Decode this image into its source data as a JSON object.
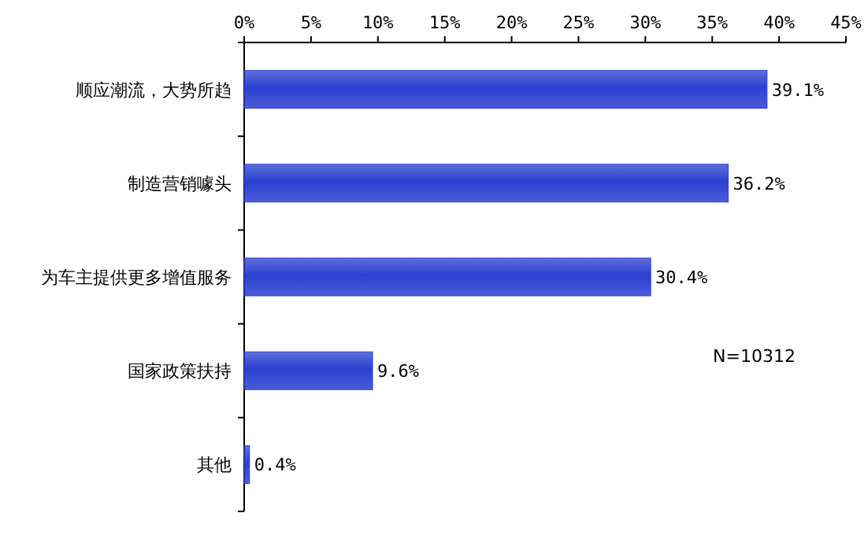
{
  "chart_data": {
    "type": "bar",
    "orientation": "horizontal",
    "categories": [
      "顺应潮流，大势所趋",
      "制造营销噱头",
      "为车主提供更多增值服务",
      "国家政策扶持",
      "其他"
    ],
    "values": [
      39.1,
      36.2,
      30.4,
      9.6,
      0.4
    ],
    "value_labels": [
      "39.1%",
      "36.2%",
      "30.4%",
      "9.6%",
      "0.4%"
    ],
    "color": "#2b3fd0",
    "xlim": [
      0,
      45
    ],
    "xticks": [
      {
        "value": 0,
        "label": "0%"
      },
      {
        "value": 5,
        "label": "5%"
      },
      {
        "value": 10,
        "label": "10%"
      },
      {
        "value": 15,
        "label": "15%"
      },
      {
        "value": 20,
        "label": "20%"
      },
      {
        "value": 25,
        "label": "25%"
      },
      {
        "value": 30,
        "label": "30%"
      },
      {
        "value": 35,
        "label": "35%"
      },
      {
        "value": 40,
        "label": "40%"
      },
      {
        "value": 45,
        "label": "45%"
      }
    ],
    "annotations": [
      "N=10312"
    ]
  }
}
